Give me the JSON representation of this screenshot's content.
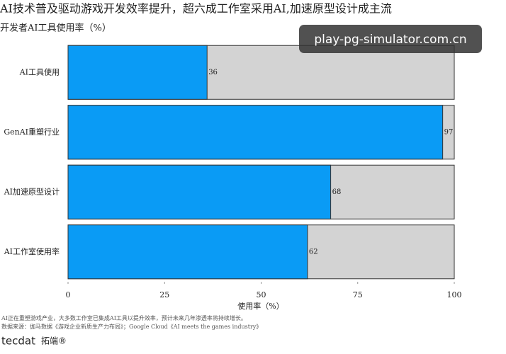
{
  "chart_data": {
    "type": "bar",
    "orientation": "horizontal",
    "title": "AI技术普及驱动游戏开发效率提升，超六成工作室采用AI,加速原型设计成主流",
    "subtitle": "开发者AI工具使用率（%）",
    "categories": [
      "AI工具使用",
      "GenAI重塑行业",
      "AI加速原型设计",
      "AI工作室使用率"
    ],
    "values": [
      36,
      97,
      68,
      62
    ],
    "color": "#0a9bf5",
    "track_color": "#d3d3d3",
    "xlim": [
      0,
      100
    ],
    "xticks": [
      0,
      25,
      50,
      75,
      100
    ],
    "xlabel": "使用率（%）",
    "notes": [
      "AI正在重塑游戏产业，大多数工作室已集成AI工具以提升效率，预计未来几年渗透率将持续增长。",
      "数据来源：伽马数据《游戏企业新质生产力布局》；Google Cloud《AI meets the games industry》"
    ]
  },
  "watermark": "play-pg-simulator.com.cn",
  "logo": {
    "brand": "tecdat",
    "name": "拓端®"
  }
}
